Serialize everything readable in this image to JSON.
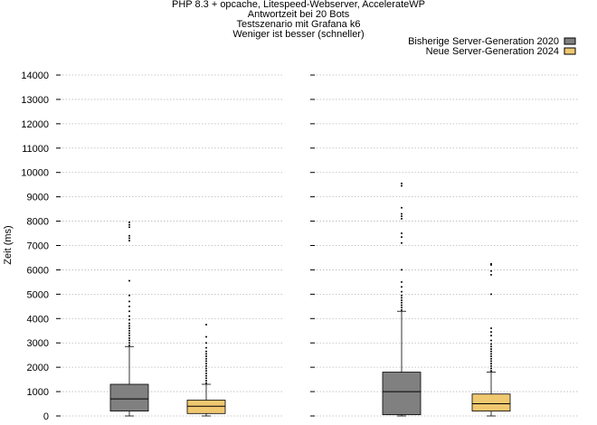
{
  "chart_data": {
    "type": "boxplot",
    "title_lines": [
      "PHP 8.3 + opcache, Litespeed-Webserver, AccelerateWP",
      "Antwortzeit bei 20 Bots",
      "Testszenario mit Grafana k6",
      "Weniger ist besser (schneller)"
    ],
    "ylabel": "Zeit (ms)",
    "ylim": [
      0,
      14000
    ],
    "yticks": [
      0,
      1000,
      2000,
      3000,
      4000,
      5000,
      6000,
      7000,
      8000,
      9000,
      10000,
      11000,
      12000,
      13000,
      14000
    ],
    "grid": true,
    "legend_position": "top-right",
    "series": [
      {
        "name": "Bisherige Server-Generation 2020",
        "color": "#808080"
      },
      {
        "name": "Neue Server-Generation 2024",
        "color": "#f0c870"
      }
    ],
    "groups": [
      {
        "boxes": [
          {
            "series": 0,
            "min": 0,
            "q1": 200,
            "median": 700,
            "q3": 1300,
            "max": 2850,
            "outliers": [
              2900,
              3000,
              3100,
              3200,
              3300,
              3400,
              3500,
              3600,
              3700,
              3800,
              3950,
              4100,
              4300,
              4500,
              4700,
              4950,
              5550,
              7200,
              7300,
              7400,
              7750,
              7850,
              7950
            ]
          },
          {
            "series": 1,
            "min": 0,
            "q1": 100,
            "median": 400,
            "q3": 650,
            "max": 1300,
            "outliers": [
              1350,
              1450,
              1550,
              1650,
              1750,
              1850,
              1950,
              2050,
              2150,
              2250,
              2350,
              2450,
              2550,
              2650,
              2800,
              3000,
              3250,
              3750
            ]
          }
        ]
      },
      {
        "boxes": [
          {
            "series": 0,
            "min": 0,
            "q1": 50,
            "median": 1000,
            "q3": 1800,
            "max": 4300,
            "outliers": [
              4350,
              4450,
              4550,
              4650,
              4750,
              4850,
              4950,
              5100,
              5300,
              5500,
              6000,
              7100,
              7350,
              7500,
              8100,
              8200,
              8300,
              8550,
              9450,
              9550
            ]
          },
          {
            "series": 1,
            "min": 0,
            "q1": 200,
            "median": 500,
            "q3": 900,
            "max": 1800,
            "outliers": [
              1850,
              1950,
              2050,
              2150,
              2250,
              2350,
              2450,
              2550,
              2650,
              2750,
              2850,
              2950,
              3100,
              3300,
              3450,
              3600,
              5000,
              5800,
              5950,
              6200,
              6250
            ]
          }
        ]
      }
    ]
  }
}
